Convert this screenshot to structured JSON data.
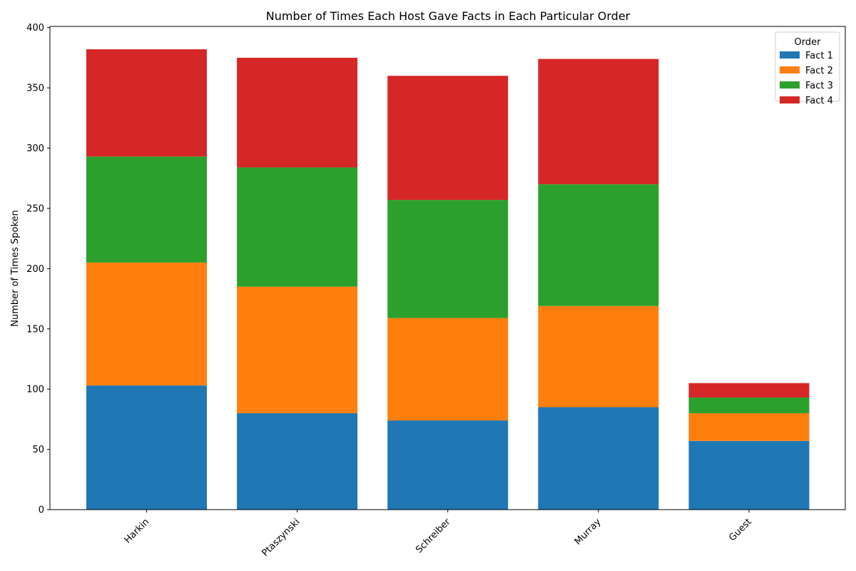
{
  "chart_data": {
    "type": "bar",
    "stacked": true,
    "title": "Number of Times Each Host Gave Facts in Each Particular Order",
    "xlabel": "",
    "ylabel": "Number of Times Spoken",
    "categories": [
      "Harkin",
      "Ptaszynski",
      "Schreiber",
      "Murray",
      "Guest"
    ],
    "series": [
      {
        "name": "Fact 1",
        "color": "#1f77b4",
        "values": [
          103,
          80,
          74,
          85,
          57
        ]
      },
      {
        "name": "Fact 2",
        "color": "#ff7f0e",
        "values": [
          102,
          105,
          85,
          84,
          23
        ]
      },
      {
        "name": "Fact 3",
        "color": "#2ca02c",
        "values": [
          88,
          99,
          98,
          101,
          13
        ]
      },
      {
        "name": "Fact 4",
        "color": "#d62728",
        "values": [
          89,
          91,
          103,
          104,
          12
        ]
      }
    ],
    "ylim": [
      0,
      401
    ],
    "yticks": [
      0,
      50,
      100,
      150,
      200,
      250,
      300,
      350,
      400
    ],
    "xtick_rotation_deg": 45,
    "grid": false,
    "legend": {
      "title": "Order",
      "placement": "top-right"
    }
  }
}
